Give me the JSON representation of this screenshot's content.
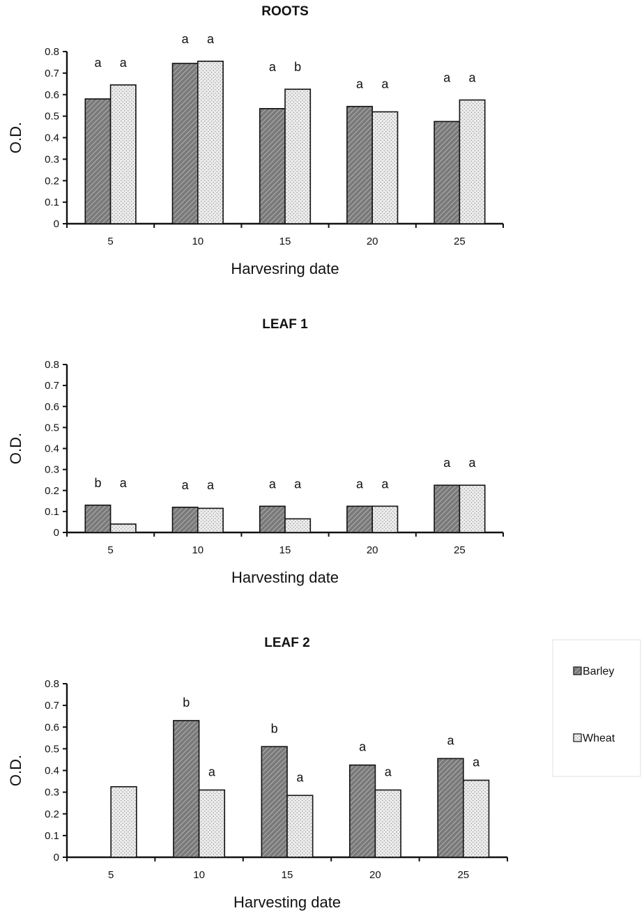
{
  "chart_data": [
    {
      "type": "bar",
      "title": "ROOTS",
      "xlabel": "Harvesring date",
      "ylabel": "O.D.",
      "ylim": [
        0,
        0.8
      ],
      "yticks": [
        "0",
        "0.1",
        "0.2",
        "0.3",
        "0.4",
        "0.5",
        "0.6",
        "0.7",
        "0.8"
      ],
      "categories": [
        "5",
        "10",
        "15",
        "20",
        "25"
      ],
      "series": [
        {
          "name": "Barley",
          "values": [
            0.58,
            0.745,
            0.535,
            0.545,
            0.475
          ],
          "labels": [
            "a",
            "a",
            "a",
            "a",
            "a"
          ]
        },
        {
          "name": "Wheat",
          "values": [
            0.645,
            0.755,
            0.625,
            0.52,
            0.575
          ],
          "labels": [
            "a",
            "a",
            "b",
            "a",
            "a"
          ]
        }
      ]
    },
    {
      "type": "bar",
      "title": "LEAF 1",
      "xlabel": "Harvesting date",
      "ylabel": "O.D.",
      "ylim": [
        0,
        0.8
      ],
      "yticks": [
        "0",
        "0.1",
        "0.2",
        "0.3",
        "0.4",
        "0.5",
        "0.6",
        "0.7",
        "0.8"
      ],
      "categories": [
        "5",
        "10",
        "15",
        "20",
        "25"
      ],
      "series": [
        {
          "name": "Barley",
          "values": [
            0.13,
            0.12,
            0.125,
            0.125,
            0.225
          ],
          "labels": [
            "b",
            "a",
            "a",
            "a",
            "a"
          ]
        },
        {
          "name": "Wheat",
          "values": [
            0.04,
            0.115,
            0.065,
            0.125,
            0.225
          ],
          "labels": [
            "a",
            "a",
            "a",
            "a",
            "a"
          ]
        }
      ]
    },
    {
      "type": "bar",
      "title": "LEAF 2",
      "xlabel": "Harvesting date",
      "ylabel": "O.D.",
      "ylim": [
        0,
        0.8
      ],
      "yticks": [
        "0",
        "0.1",
        "0.2",
        "0.3",
        "0.4",
        "0.5",
        "0.6",
        "0.7",
        "0.8"
      ],
      "categories": [
        "5",
        "10",
        "15",
        "20",
        "25"
      ],
      "series": [
        {
          "name": "Barley",
          "values": [
            null,
            0.63,
            0.51,
            0.425,
            0.455
          ],
          "labels": [
            "",
            "b",
            "b",
            "a",
            "a"
          ]
        },
        {
          "name": "Wheat",
          "values": [
            0.325,
            0.31,
            0.285,
            0.31,
            0.355
          ],
          "labels": [
            "",
            "a",
            "a",
            "a",
            "a"
          ]
        }
      ]
    }
  ],
  "legend": {
    "placement": "right",
    "items": [
      {
        "label": "Barley",
        "color": "#7a7a7a"
      },
      {
        "label": "Wheat",
        "color": "#ececec"
      }
    ]
  }
}
